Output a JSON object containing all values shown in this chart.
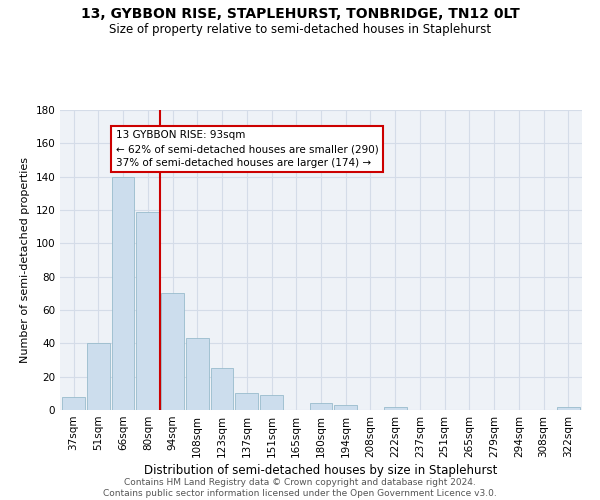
{
  "title": "13, GYBBON RISE, STAPLEHURST, TONBRIDGE, TN12 0LT",
  "subtitle": "Size of property relative to semi-detached houses in Staplehurst",
  "xlabel": "Distribution of semi-detached houses by size in Staplehurst",
  "ylabel": "Number of semi-detached properties",
  "bar_labels": [
    "37sqm",
    "51sqm",
    "66sqm",
    "80sqm",
    "94sqm",
    "108sqm",
    "123sqm",
    "137sqm",
    "151sqm",
    "165sqm",
    "180sqm",
    "194sqm",
    "208sqm",
    "222sqm",
    "237sqm",
    "251sqm",
    "265sqm",
    "279sqm",
    "294sqm",
    "308sqm",
    "322sqm"
  ],
  "bar_values": [
    8,
    40,
    140,
    119,
    70,
    43,
    25,
    10,
    9,
    0,
    4,
    3,
    0,
    2,
    0,
    0,
    0,
    0,
    0,
    0,
    2
  ],
  "bar_color": "#ccdded",
  "bar_edge_color": "#99bbcc",
  "ref_bar_index": 4,
  "reference_line_color": "#cc0000",
  "ann_line1": "13 GYBBON RISE: 93sqm",
  "ann_line2": "← 62% of semi-detached houses are smaller (290)",
  "ann_line3": "37% of semi-detached houses are larger (174) →",
  "ylim": [
    0,
    180
  ],
  "yticks": [
    0,
    20,
    40,
    60,
    80,
    100,
    120,
    140,
    160,
    180
  ],
  "footer_line1": "Contains HM Land Registry data © Crown copyright and database right 2024.",
  "footer_line2": "Contains public sector information licensed under the Open Government Licence v3.0.",
  "bg_color": "#eef2f7",
  "grid_color": "#d4dce8",
  "title_fontsize": 10,
  "subtitle_fontsize": 8.5,
  "tick_fontsize": 7.5,
  "ylabel_fontsize": 8,
  "xlabel_fontsize": 8.5,
  "footer_fontsize": 6.5
}
